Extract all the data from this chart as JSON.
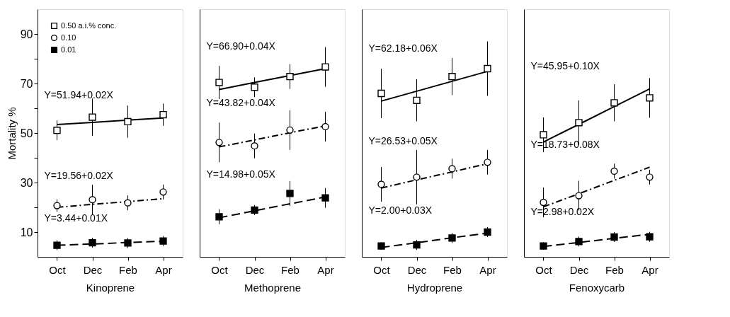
{
  "chart_data": [
    {
      "type": "scatter",
      "xlabel": "Kinoprene",
      "ylabel": "Mortality %",
      "legend": "top left",
      "grid": false,
      "categories": [
        "Oct",
        "Dec",
        "Feb",
        "Apr"
      ],
      "ylim": [
        0,
        100
      ],
      "yticks": [
        10,
        {
          "value": 20,
          "label": null
        },
        30,
        {
          "value": 40,
          "label": null
        },
        50,
        {
          "value": 60,
          "label": null
        },
        70,
        {
          "value": 80,
          "label": null
        },
        90
      ],
      "series": [
        {
          "name": "0.50 a.i.% conc.",
          "color": "#ffffff",
          "marker": "square",
          "values": [
            51.1,
            56.4,
            54.6,
            57.4
          ],
          "errors": [
            4,
            7.5,
            6.5,
            4.5
          ]
        },
        {
          "name": "0.10",
          "color": "#ffffff",
          "marker": "circle",
          "values": [
            20.7,
            23.1,
            21.8,
            26.2
          ],
          "errors": [
            2.5,
            6,
            3,
            3
          ]
        },
        {
          "name": "0.01",
          "color": "#000000",
          "marker": "square",
          "values": [
            4.7,
            5.7,
            5.6,
            6.4
          ],
          "errors": [
            2,
            2,
            2,
            2
          ]
        },
        {
          "type": "line",
          "color": "#000000",
          "line_style": "solid",
          "values": [
            53.4,
            54.3,
            55.2,
            56.1
          ]
        },
        {
          "type": "line",
          "color": "#000000",
          "line_style": "dashdot",
          "values": [
            20.0,
            21.2,
            22.3,
            23.5
          ]
        },
        {
          "type": "line",
          "color": "#000000",
          "line_style": "dashed",
          "values": [
            4.7,
            5.2,
            5.8,
            6.3
          ]
        }
      ],
      "annotations": [
        "Y=51.94+0.02X",
        "Y=19.56+0.02X",
        "Y=3.44+0.01X"
      ]
    },
    {
      "type": "scatter",
      "xlabel": "Methoprene",
      "tick_labels": "x",
      "grid": false,
      "categories": [
        "Oct",
        "Dec",
        "Feb",
        "Apr"
      ],
      "ylim": [
        0,
        100
      ],
      "series": [
        {
          "color": "#ffffff",
          "marker": "square",
          "values": [
            70.4,
            68.5,
            72.8,
            76.7
          ],
          "errors": [
            6.7,
            4,
            5,
            8
          ]
        },
        {
          "color": "#ffffff",
          "marker": "circle",
          "values": [
            46.2,
            44.8,
            51.2,
            52.6
          ],
          "errors": [
            8,
            5,
            8,
            6
          ]
        },
        {
          "color": "#000000",
          "marker": "square",
          "values": [
            16.2,
            18.9,
            25.6,
            23.8
          ],
          "errors": [
            3,
            2,
            5,
            4
          ]
        },
        {
          "type": "line",
          "color": "#000000",
          "line_style": "solid",
          "values": [
            67.6,
            70.4,
            73.2,
            76.0
          ]
        },
        {
          "type": "line",
          "color": "#000000",
          "line_style": "dashdot",
          "values": [
            44.4,
            47.2,
            50.1,
            52.9
          ]
        },
        {
          "type": "line",
          "color": "#000000",
          "line_style": "dashed",
          "values": [
            15.8,
            18.6,
            21.4,
            24.2
          ]
        }
      ],
      "annotations": [
        "Y=66.90+0.04X",
        "Y=43.82+0.04X",
        "Y=14.98+0.05X"
      ]
    },
    {
      "type": "scatter",
      "xlabel": "Hydroprene",
      "tick_labels": "x",
      "grid": false,
      "categories": [
        "Oct",
        "Dec",
        "Feb",
        "Apr"
      ],
      "ylim": [
        0,
        100
      ],
      "series": [
        {
          "color": "#ffffff",
          "marker": "square",
          "values": [
            66.0,
            63.2,
            72.8,
            76.0
          ],
          "errors": [
            10,
            8.5,
            7.5,
            11
          ]
        },
        {
          "color": "#ffffff",
          "marker": "circle",
          "values": [
            29.3,
            32.2,
            35.6,
            38.2
          ],
          "errors": [
            7,
            11,
            4,
            5
          ]
        },
        {
          "color": "#000000",
          "marker": "square",
          "values": [
            4.4,
            4.8,
            7.6,
            10.0
          ],
          "errors": [
            1.5,
            2,
            2,
            2
          ]
        },
        {
          "type": "line",
          "color": "#000000",
          "line_style": "solid",
          "values": [
            62.9,
            66.9,
            70.9,
            74.9
          ]
        },
        {
          "type": "line",
          "color": "#000000",
          "line_style": "dashdot",
          "values": [
            27.8,
            31.1,
            34.3,
            37.6
          ]
        },
        {
          "type": "line",
          "color": "#000000",
          "line_style": "dashed",
          "values": [
            3.8,
            5.7,
            7.7,
            9.6
          ]
        }
      ],
      "annotations": [
        "Y=62.18+0.06X",
        "Y=26.53+0.05X",
        "Y=2.00+0.03X"
      ]
    },
    {
      "type": "scatter",
      "xlabel": "Fenoxycarb",
      "tick_labels": "x",
      "grid": false,
      "categories": [
        "Oct",
        "Dec",
        "Feb",
        "Apr"
      ],
      "ylim": [
        0,
        100
      ],
      "series": [
        {
          "color": "#ffffff",
          "marker": "square",
          "values": [
            49.3,
            54.2,
            62.2,
            64.2
          ],
          "errors": [
            7,
            9,
            7.5,
            8
          ]
        },
        {
          "color": "#ffffff",
          "marker": "circle",
          "values": [
            22.0,
            24.7,
            34.6,
            32.2
          ],
          "errors": [
            6,
            6,
            3,
            3
          ]
        },
        {
          "color": "#000000",
          "marker": "square",
          "values": [
            4.4,
            6.2,
            8.0,
            8.1
          ],
          "errors": [
            1.5,
            2,
            2,
            2
          ]
        },
        {
          "type": "line",
          "color": "#000000",
          "line_style": "solid",
          "values": [
            46.4,
            53.5,
            60.7,
            67.8
          ]
        },
        {
          "type": "line",
          "color": "#000000",
          "line_style": "dashdot",
          "values": [
            20.2,
            25.5,
            30.9,
            36.2
          ]
        },
        {
          "type": "line",
          "color": "#000000",
          "line_style": "dashed",
          "values": [
            4.2,
            5.8,
            7.5,
            9.1
          ]
        }
      ],
      "annotations": [
        "Y=45.95+0.10X",
        "Y=18.73+0.08X",
        "Y=2.98+0.02X"
      ]
    }
  ]
}
